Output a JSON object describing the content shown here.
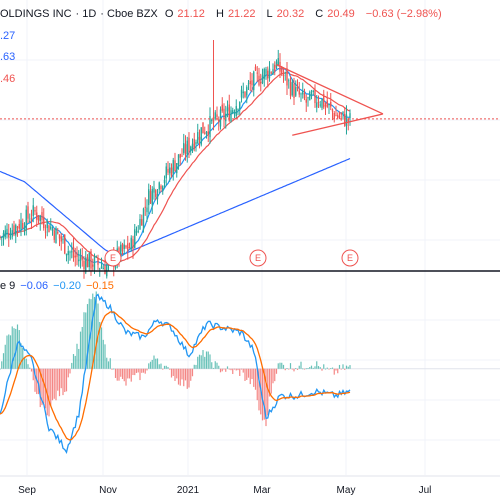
{
  "header": {
    "symbol": "OLDINGS INC",
    "interval": "· 1D",
    "exchange": "· Cboe BZX",
    "open_label": "O",
    "open": "21.12",
    "high_label": "H",
    "high": "21.22",
    "low_label": "L",
    "low": "20.32",
    "close_label": "C",
    "close": "20.49",
    "change": "−0.63 (−2.98%)"
  },
  "ma_labels": [
    {
      "text": ".27",
      "color": "#2962ff"
    },
    {
      "text": ".63",
      "color": "#2962ff"
    },
    {
      "text": ".46",
      "color": "#ef5350"
    }
  ],
  "macd_header": {
    "label": "e 9",
    "macd": "−0.06",
    "macd_color": "#2962ff",
    "signal": "−0.20",
    "signal_color": "#2196f3",
    "hist": "−0.15",
    "hist_color": "#ff6d00"
  },
  "colors": {
    "up": "#26a69a",
    "down": "#ef5350",
    "ma_fast": "#2196f3",
    "ma_mid": "#ef5350",
    "ma_slow": "#2962ff",
    "macd_line": "#2196f3",
    "signal_line": "#ff6d00",
    "hist_pos": "#26a69a",
    "hist_neg": "#ef5350"
  },
  "chart_data": {
    "type": "candlestick",
    "x_axis": [
      "Sep",
      "Nov",
      "2021",
      "Mar",
      "May",
      "Jul"
    ],
    "event_markers": [
      "E",
      "E",
      "E"
    ],
    "price_anchors": [
      [
        0,
        14
      ],
      [
        20,
        15.5
      ],
      [
        30,
        14.5
      ],
      [
        42,
        12.8
      ],
      [
        60,
        12.2
      ],
      [
        75,
        13.5
      ],
      [
        85,
        16.5
      ],
      [
        100,
        18.5
      ],
      [
        115,
        20.5
      ],
      [
        130,
        21.5
      ],
      [
        145,
        23.5
      ],
      [
        158,
        24.5
      ],
      [
        167,
        23
      ],
      [
        175,
        22.2
      ],
      [
        182,
        22.5
      ],
      [
        192,
        21.4
      ],
      [
        200,
        21.1
      ]
    ],
    "triangle_pattern": {
      "upper": [
        [
          158,
          24.5
        ],
        [
          207,
          21.5
        ]
      ],
      "lower": [
        [
          167,
          20.2
        ],
        [
          207,
          21.5
        ]
      ]
    },
    "horizontal_line": 21.2,
    "price_range": [
      12,
      26
    ],
    "macd_anchors": [
      [
        0,
        -1.0
      ],
      [
        10,
        0.6
      ],
      [
        18,
        0.2
      ],
      [
        28,
        -1.3
      ],
      [
        38,
        -1.8
      ],
      [
        45,
        -1.0
      ],
      [
        55,
        1.6
      ],
      [
        62,
        1.4
      ],
      [
        72,
        0.8
      ],
      [
        82,
        0.7
      ],
      [
        90,
        1.1
      ],
      [
        98,
        0.9
      ],
      [
        108,
        0.3
      ],
      [
        118,
        1.0
      ],
      [
        128,
        0.9
      ],
      [
        138,
        0.8
      ],
      [
        145,
        0.4
      ],
      [
        152,
        -1.1
      ],
      [
        160,
        -0.6
      ],
      [
        170,
        -0.6
      ],
      [
        180,
        -0.5
      ],
      [
        192,
        -0.6
      ],
      [
        200,
        -0.5
      ]
    ],
    "macd_range": [
      -2.2,
      1.9
    ]
  }
}
